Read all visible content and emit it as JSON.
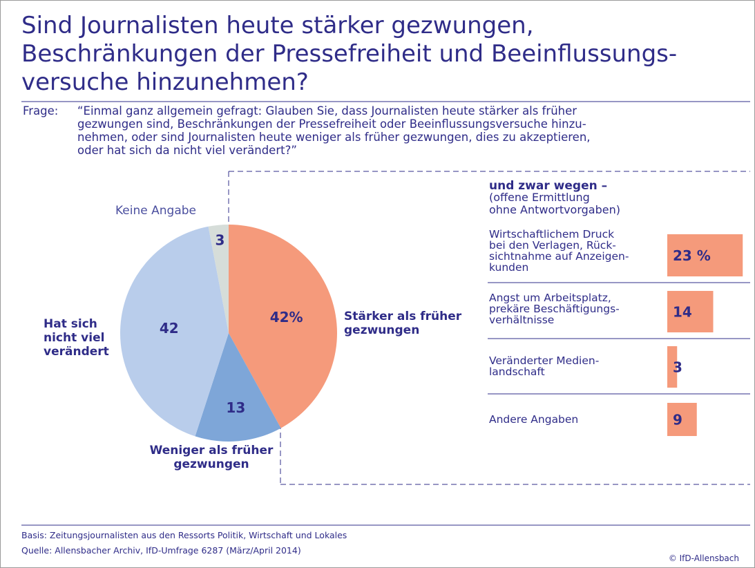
{
  "title": "Sind Journalisten heute stärker gezwungen,\nBeschränkungen der Pressefreiheit und Beeinflussungs-\nversuche hinzunehmen?",
  "question_label": "Frage:",
  "question": "“Einmal ganz allgemein gefragt: Glauben Sie, dass Journalisten heute stärker als früher\ngezwungen sind, Beschränkungen der Pressefreiheit oder Beeinflussungsversuche hinzu-\nnehmen, oder sind Journalisten heute weniger als früher gezwungen, dies zu akzeptieren,\noder hat sich da nicht viel verändert?”",
  "chart_data": [
    {
      "type": "pie",
      "categories": [
        "Stärker als früher\ngezwungen",
        "Weniger als früher\ngezwungen",
        "Hat sich\nnicht viel\nverändert",
        "Keine Angabe"
      ],
      "values": [
        42,
        13,
        42,
        3
      ],
      "value_labels": [
        "42%",
        "13",
        "42",
        "3"
      ],
      "colors": [
        "#f59a7b",
        "#7ea6d8",
        "#b9cdeb",
        "#d6ddd9"
      ]
    },
    {
      "type": "bar",
      "title": "und zwar wegen –",
      "subtitle": "(offene Ermittlung\nohne Antwortvorgaben)",
      "categories": [
        "Wirtschaftlichem Druck\nbei den Verlagen, Rück-\nsichtnahme auf Anzeigen-\nkunden",
        "Angst um Arbeitsplatz,\nprekäre Beschäftigungs-\nverhältnisse",
        "Veränderter Medien-\nlandschaft",
        "Andere Angaben"
      ],
      "values": [
        23,
        14,
        3,
        9
      ],
      "value_labels": [
        "23 %",
        "14",
        "3",
        "9"
      ],
      "color": "#f59a7b"
    }
  ],
  "footer": {
    "basis": "Basis: Zeitungsjournalisten aus den Ressorts Politik, Wirtschaft und Lokales",
    "source": "Quelle: Allensbacher Archiv, IfD-Umfrage 6287 (März/April 2014)",
    "copyright": "© IfD-Allensbach"
  }
}
